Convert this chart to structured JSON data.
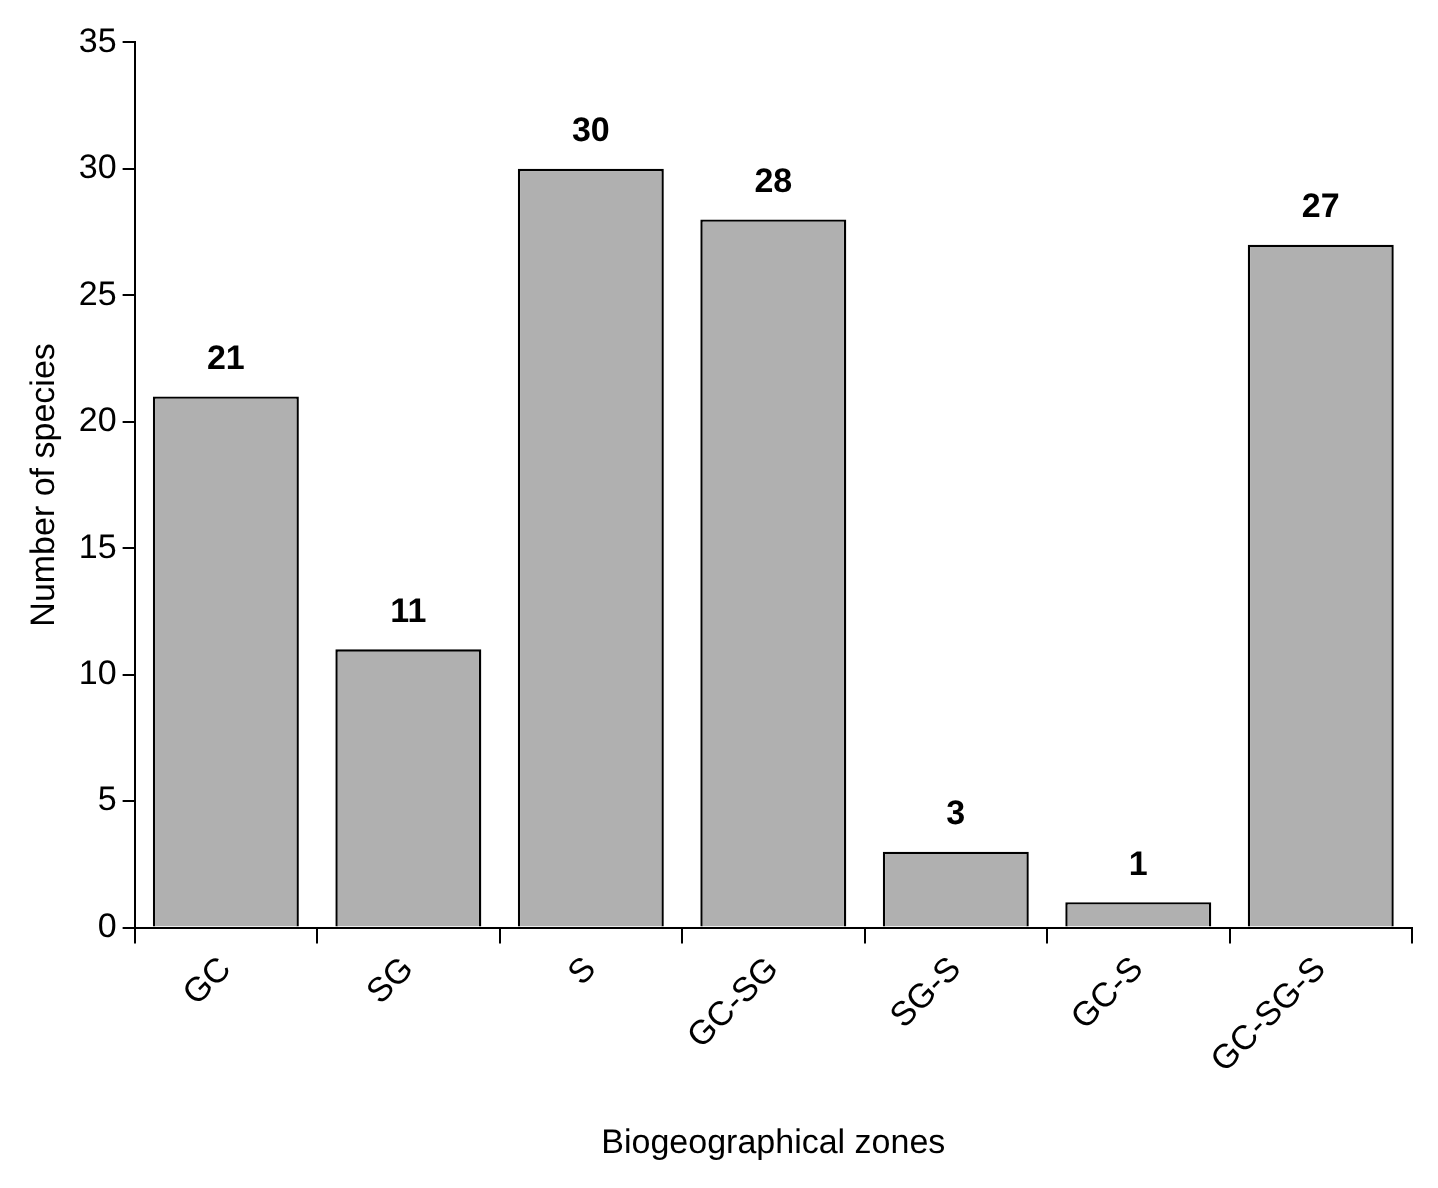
{
  "chart_data": {
    "type": "bar",
    "xlabel": "Biogeographical zones",
    "ylabel": "Number of species",
    "categories": [
      "GC",
      "SG",
      "S",
      "GC-SG",
      "SG-S",
      "GC-S",
      "GC-SG-S"
    ],
    "values": [
      21,
      11,
      30,
      28,
      3,
      1,
      27
    ],
    "color": "#b0b0b0",
    "ylim": [
      0,
      35
    ],
    "yticks": [
      0,
      5,
      10,
      15,
      20,
      25,
      30,
      35
    ],
    "data_labels": true
  }
}
